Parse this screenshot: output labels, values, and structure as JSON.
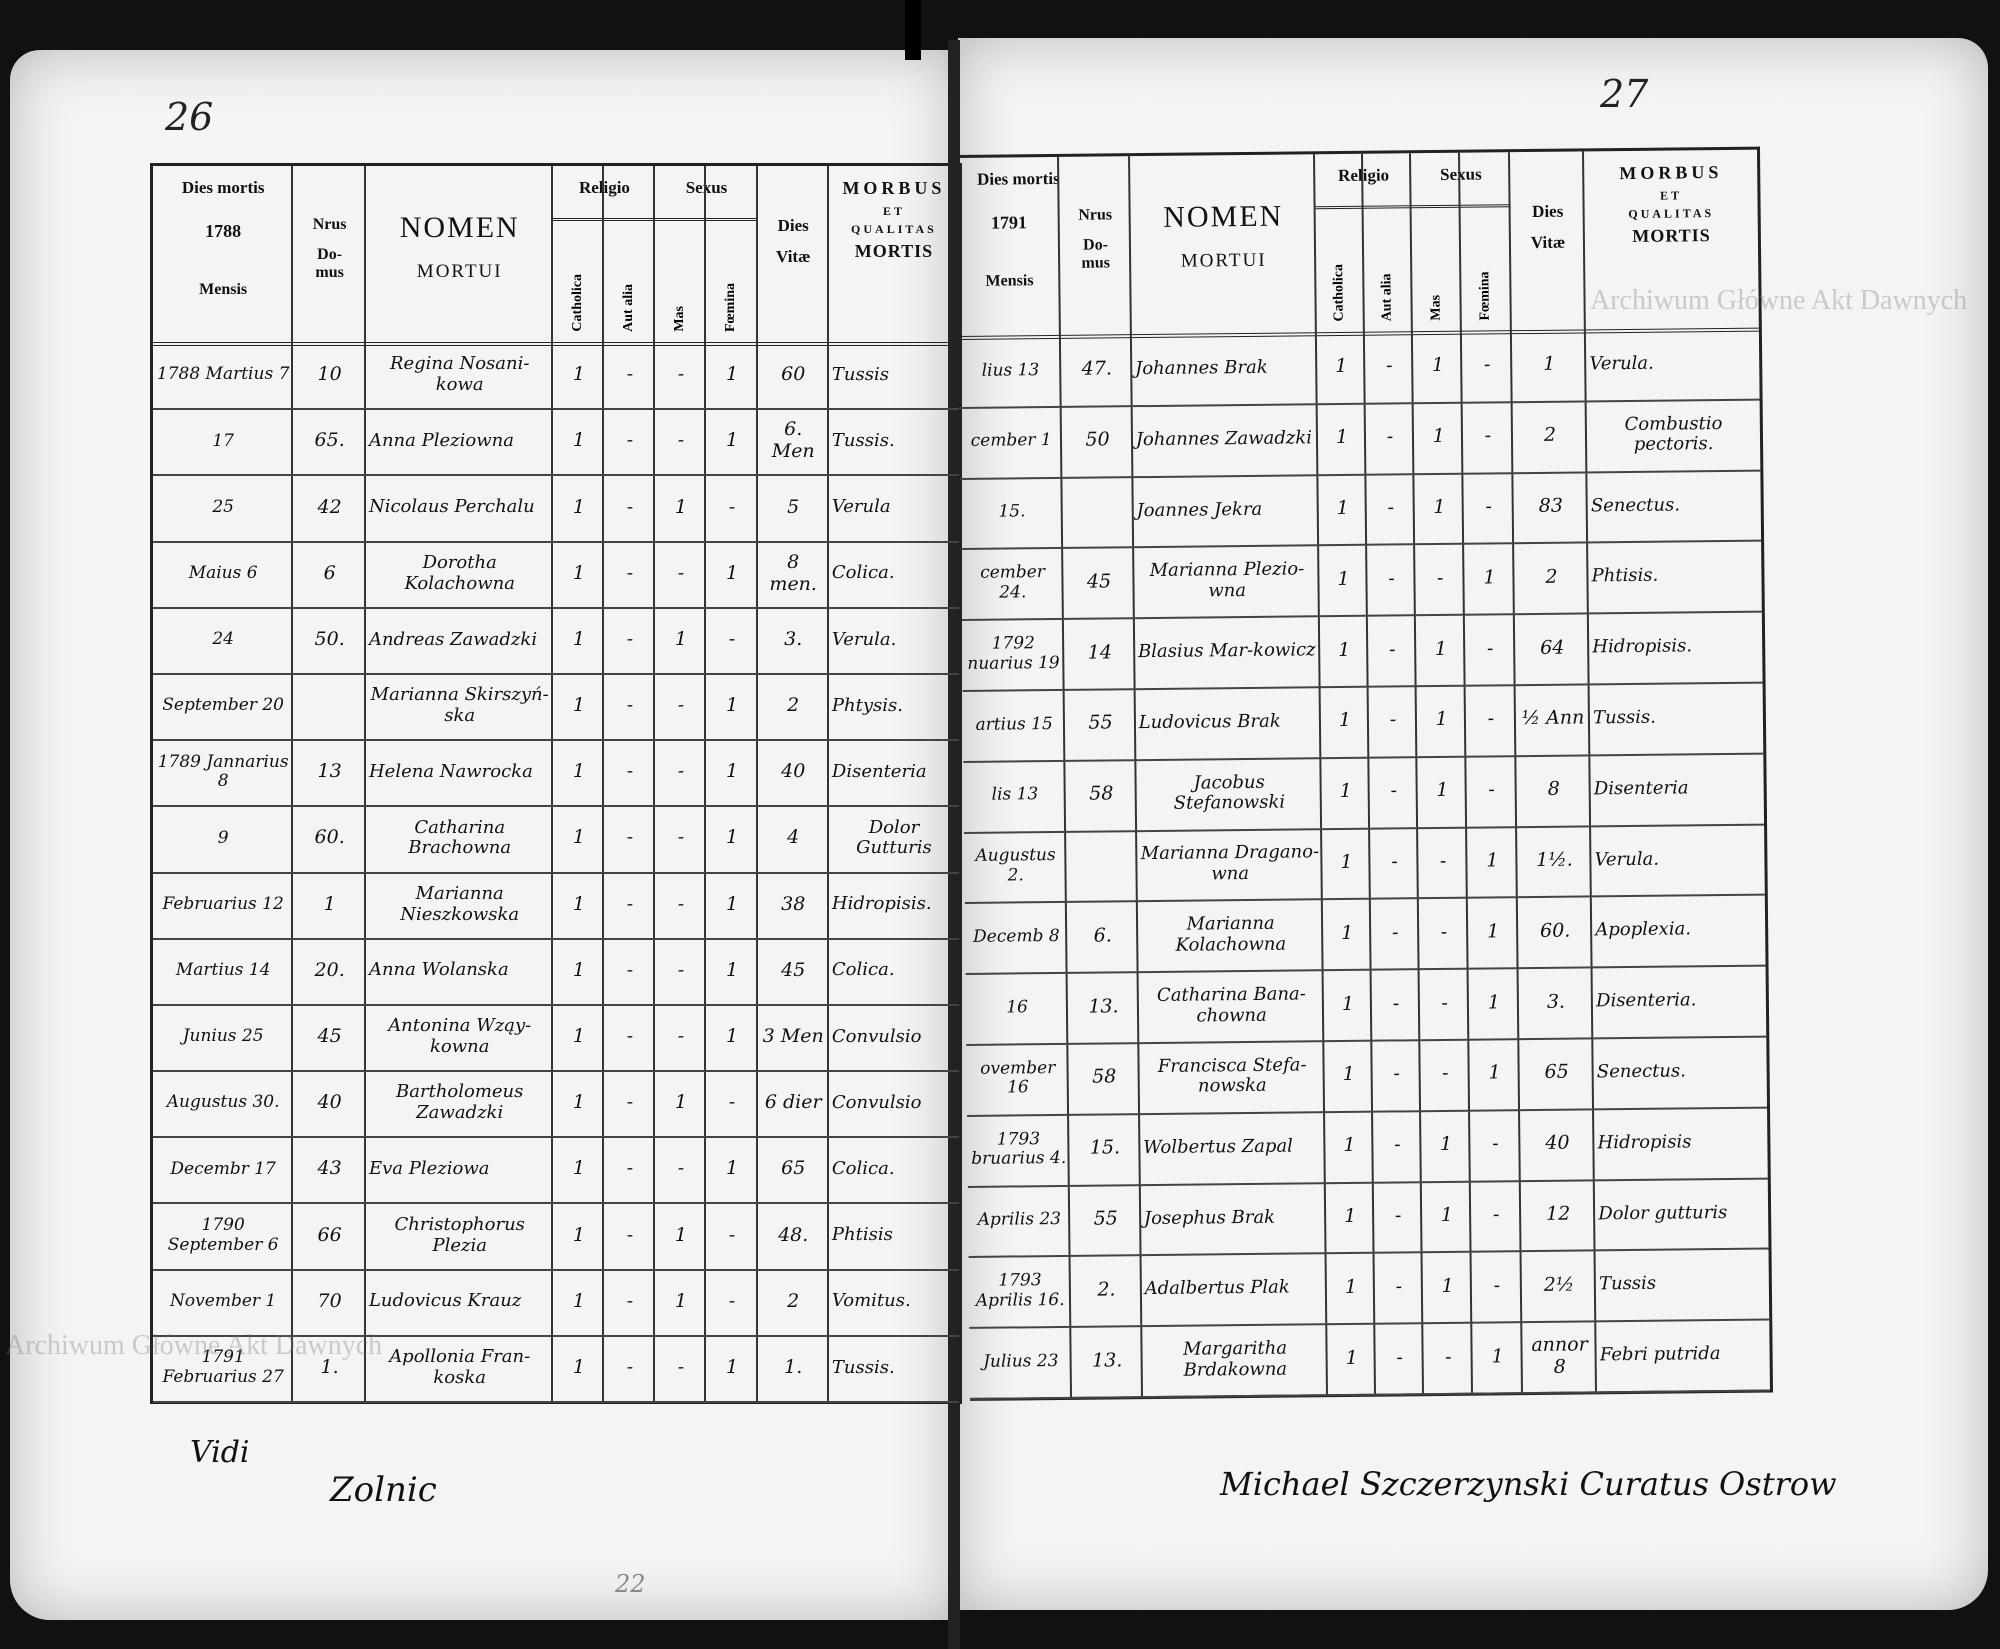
{
  "document": {
    "left_page_number": "26",
    "right_page_number": "27",
    "watermark": "Archiwum Główne Akt Dawnych",
    "header": {
      "dies_mortis": "Dies mortis",
      "year_left": "1788",
      "year_right": "1791",
      "mensis": "Mensis",
      "nrus": "Nrus",
      "domus": "Do-\nmus",
      "nomen": "NOMEN",
      "mortui": "MORTUI",
      "religio": "Religio",
      "sexus": "Sexus",
      "catholica": "Catholica",
      "aut_alia": "Aut alia",
      "mas": "Mas",
      "foemina": "Fœmina",
      "dies_vitae": "Dies\nVitæ",
      "morbus": "MORBUS",
      "et": "ET",
      "qualitas": "QUALITAS",
      "mortis": "MORTIS"
    },
    "left_rows": [
      [
        "1788 Martius 7",
        "10",
        "Regina Nosani-kowa",
        "1",
        "-",
        "-",
        "1",
        "60",
        "Tussis"
      ],
      [
        "17",
        "65.",
        "Anna Pleziowna",
        "1",
        "-",
        "-",
        "1",
        "6. Men",
        "Tussis."
      ],
      [
        "25",
        "42",
        "Nicolaus Perchalu",
        "1",
        "-",
        "1",
        "-",
        "5",
        "Verula"
      ],
      [
        "Maius 6",
        "6",
        "Dorotha Kolachowna",
        "1",
        "-",
        "-",
        "1",
        "8 men.",
        "Colica."
      ],
      [
        "24",
        "50.",
        "Andreas Zawadzki",
        "1",
        "-",
        "1",
        "-",
        "3.",
        "Verula."
      ],
      [
        "September 20",
        "",
        "Marianna Skirszyń-ska",
        "1",
        "-",
        "-",
        "1",
        "2",
        "Phtysis."
      ],
      [
        "1789 Jannarius 8",
        "13",
        "Helena Nawrocka",
        "1",
        "-",
        "-",
        "1",
        "40",
        "Disenteria"
      ],
      [
        "9",
        "60.",
        "Catharina Brachowna",
        "1",
        "-",
        "-",
        "1",
        "4",
        "Dolor Gutturis"
      ],
      [
        "Februarius 12",
        "1",
        "Marianna Nieszkowska",
        "1",
        "-",
        "-",
        "1",
        "38",
        "Hidropisis."
      ],
      [
        "Martius 14",
        "20.",
        "Anna Wolanska",
        "1",
        "-",
        "-",
        "1",
        "45",
        "Colica."
      ],
      [
        "Junius 25",
        "45",
        "Antonina Wząy-kowna",
        "1",
        "-",
        "-",
        "1",
        "3 Men",
        "Convulsio"
      ],
      [
        "Augustus 30.",
        "40",
        "Bartholomeus Zawadzki",
        "1",
        "-",
        "1",
        "-",
        "6 dier",
        "Convulsio"
      ],
      [
        "Decembr 17",
        "43",
        "Eva Pleziowa",
        "1",
        "-",
        "-",
        "1",
        "65",
        "Colica."
      ],
      [
        "1790 September 6",
        "66",
        "Christophorus Plezia",
        "1",
        "-",
        "1",
        "-",
        "48.",
        "Phtisis"
      ],
      [
        "November 1",
        "70",
        "Ludovicus Krauz",
        "1",
        "-",
        "1",
        "-",
        "2",
        "Vomitus."
      ],
      [
        "1791 Februarius 27",
        "1.",
        "Apollonia Fran-koska",
        "1",
        "-",
        "-",
        "1",
        "1.",
        "Tussis."
      ]
    ],
    "right_rows": [
      [
        "lius 13",
        "47.",
        "Johannes Brak",
        "1",
        "-",
        "1",
        "-",
        "1",
        "Verula."
      ],
      [
        "cember 1",
        "50",
        "Johannes Zawadzki",
        "1",
        "-",
        "1",
        "-",
        "2",
        "Combustio pectoris."
      ],
      [
        "15.",
        "",
        "Joannes Jekra",
        "1",
        "-",
        "1",
        "-",
        "83",
        "Senectus."
      ],
      [
        "cember 24.",
        "45",
        "Marianna Plezio-wna",
        "1",
        "-",
        "-",
        "1",
        "2",
        "Phtisis."
      ],
      [
        "1792 nuarius 19",
        "14",
        "Blasius Mar-kowicz",
        "1",
        "-",
        "1",
        "-",
        "64",
        "Hidropisis."
      ],
      [
        "artius 15",
        "55",
        "Ludovicus Brak",
        "1",
        "-",
        "1",
        "-",
        "½ Ann",
        "Tussis."
      ],
      [
        "lis 13",
        "58",
        "Jacobus Stefanowski",
        "1",
        "-",
        "1",
        "-",
        "8",
        "Disenteria"
      ],
      [
        "Augustus 2.",
        "",
        "Marianna Dragano-wna",
        "1",
        "-",
        "-",
        "1",
        "1½.",
        "Verula."
      ],
      [
        "Decemb 8",
        "6.",
        "Marianna Kolachowna",
        "1",
        "-",
        "-",
        "1",
        "60.",
        "Apoplexia."
      ],
      [
        "16",
        "13.",
        "Catharina Bana-chowna",
        "1",
        "-",
        "-",
        "1",
        "3.",
        "Disenteria."
      ],
      [
        "ovember 16",
        "58",
        "Francisca Stefa-nowska",
        "1",
        "-",
        "-",
        "1",
        "65",
        "Senectus."
      ],
      [
        "1793 bruarius 4.",
        "15.",
        "Wolbertus Zapal",
        "1",
        "-",
        "1",
        "-",
        "40",
        "Hidropisis"
      ],
      [
        "Aprilis 23",
        "55",
        "Josephus Brak",
        "1",
        "-",
        "1",
        "-",
        "12",
        "Dolor gutturis"
      ],
      [
        "1793 Aprilis 16.",
        "2.",
        "Adalbertus Plak",
        "1",
        "-",
        "1",
        "-",
        "2½",
        "Tussis"
      ],
      [
        "Julius 23",
        "13.",
        "Margaritha Brdakowna",
        "1",
        "-",
        "-",
        "1",
        "annor 8",
        "Febri putrida"
      ]
    ],
    "signatures": {
      "left_vidi": "Vidi",
      "left_name": "Zolnic",
      "right": "Michael Szczerzynski Curatus Ostrow"
    },
    "footer_mark": "22"
  }
}
